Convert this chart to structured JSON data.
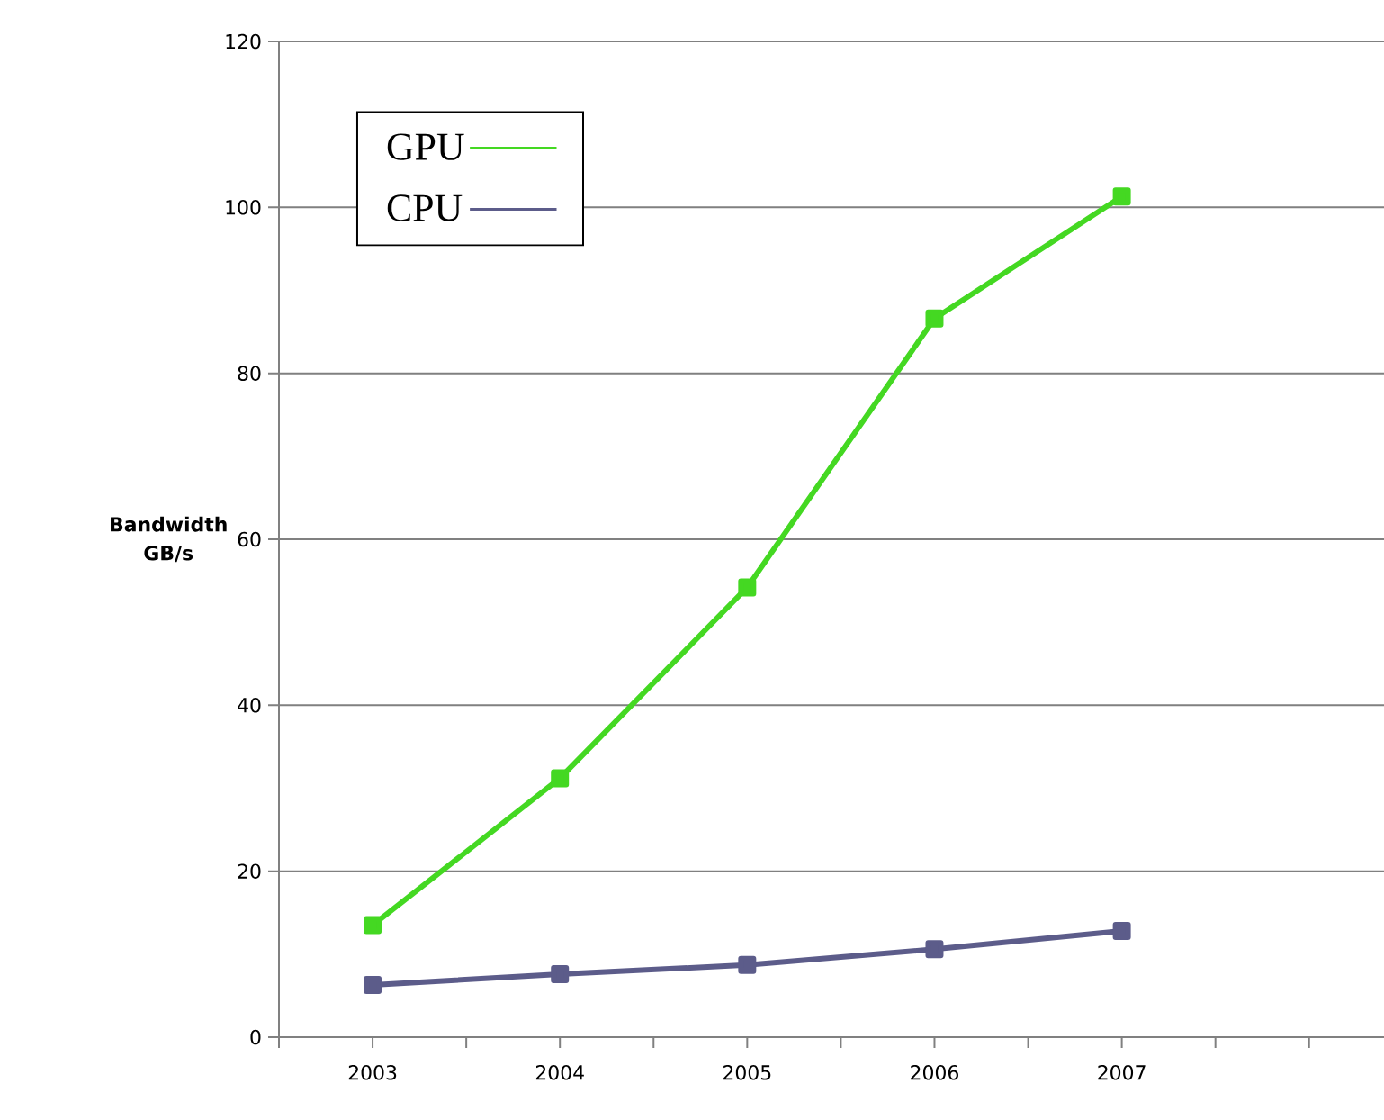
{
  "chart_data": {
    "type": "line",
    "ylabel": "Bandwidth GB/s",
    "x": [
      2003,
      2004,
      2005,
      2006,
      2007
    ],
    "xlim": [
      2002.5,
      2008.4
    ],
    "xticks": [
      {
        "value": 2002.5,
        "label": null
      },
      2003,
      {
        "value": 2003.5,
        "label": null
      },
      2004,
      {
        "value": 2004.5,
        "label": null
      },
      2005,
      {
        "value": 2005.5,
        "label": null
      },
      2006,
      {
        "value": 2006.5,
        "label": null
      },
      2007,
      {
        "value": 2007.5,
        "label": null
      },
      {
        "value": 2008,
        "label": null
      }
    ],
    "ylim": [
      0,
      120
    ],
    "yticks": [
      0,
      20,
      40,
      60,
      80,
      100,
      120
    ],
    "series": [
      {
        "name": "GPU",
        "color": "#44d822",
        "values": [
          13.5,
          31.2,
          54.2,
          86.6,
          101.3
        ]
      },
      {
        "name": "CPU",
        "color": "#5c5c8a",
        "values": [
          6.3,
          7.6,
          8.7,
          10.6,
          12.8
        ]
      }
    ],
    "grid": "y",
    "legend": "top left",
    "marker": "square",
    "line_style": "solid"
  }
}
